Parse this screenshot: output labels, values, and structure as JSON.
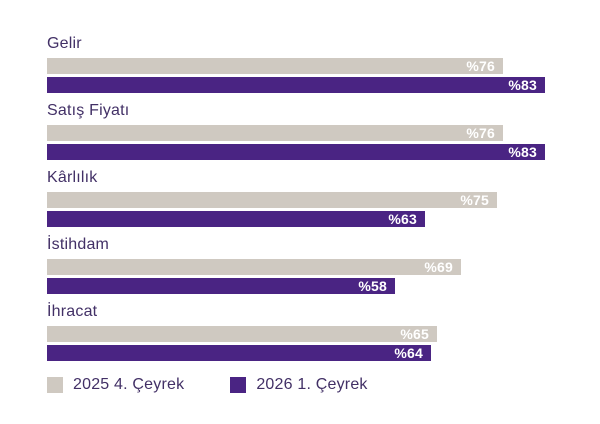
{
  "chart_data": {
    "type": "bar",
    "orientation": "horizontal",
    "title": "",
    "categories": [
      "Gelir",
      "Satış Fiyatı",
      "Kârlılık",
      "İstihdam",
      "İhracat"
    ],
    "series": [
      {
        "name": "2025 4. Çeyrek",
        "color": "#cfc9c1",
        "values": [
          76,
          76,
          75,
          69,
          65
        ]
      },
      {
        "name": "2026 1. Çeyrek",
        "color": "#4a2483",
        "values": [
          83,
          83,
          63,
          58,
          64
        ]
      }
    ],
    "value_prefix": "%",
    "xlim": [
      0,
      100
    ],
    "grid": false,
    "legend_position": "bottom",
    "value_labels": "inside-end"
  },
  "colors": {
    "background": "#ffffff",
    "category_text": "#423066",
    "value_text": "#ffffff",
    "series_prev": "#cfc9c1",
    "series_curr": "#4a2483"
  }
}
